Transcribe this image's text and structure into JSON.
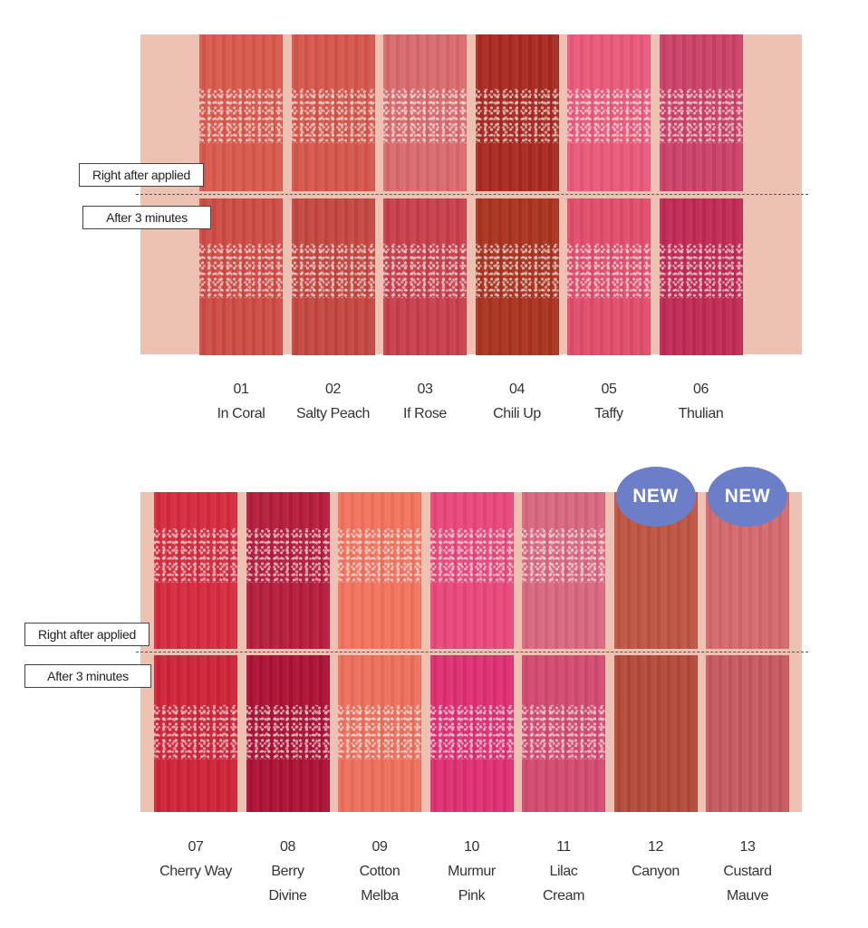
{
  "labels": {
    "right_after": "Right after applied",
    "after_3min": "After 3 minutes",
    "new_badge": "NEW"
  },
  "colors": {
    "panel_background": "#eec2b3",
    "badge": "#6d7ec9"
  },
  "top_panel": {
    "shades": [
      {
        "number": "01",
        "name": "In Coral",
        "name2": "",
        "before": "#d9594c",
        "after": "#cf4b44"
      },
      {
        "number": "02",
        "name": "Salty Peach",
        "name2": "",
        "before": "#d5564a",
        "after": "#c44740"
      },
      {
        "number": "03",
        "name": "If Rose",
        "name2": "",
        "before": "#d96a6c",
        "after": "#c73f4c"
      },
      {
        "number": "04",
        "name": "Chili Up",
        "name2": "",
        "before": "#a82a20",
        "after": "#a9331f"
      },
      {
        "number": "05",
        "name": "Taffy",
        "name2": "",
        "before": "#ea5a7a",
        "after": "#e04d6c"
      },
      {
        "number": "06",
        "name": "Thulian",
        "name2": "",
        "before": "#cc4168",
        "after": "#c02a54"
      }
    ]
  },
  "bottom_panel": {
    "shades": [
      {
        "number": "07",
        "name": "Cherry Way",
        "name2": "",
        "before": "#d62a3e",
        "after": "#cf2338",
        "is_new": false
      },
      {
        "number": "08",
        "name": "Berry",
        "name2": "Divine",
        "before": "#b51c3d",
        "after": "#ab1235",
        "is_new": false
      },
      {
        "number": "09",
        "name": "Cotton",
        "name2": "Melba",
        "before": "#f4735e",
        "after": "#ec6f5c",
        "is_new": false
      },
      {
        "number": "10",
        "name": "Murmur",
        "name2": "Pink",
        "before": "#e9487a",
        "after": "#df2f72",
        "is_new": false
      },
      {
        "number": "11",
        "name": "Lilac",
        "name2": "Cream",
        "before": "#d96780",
        "after": "#d44a71",
        "is_new": false
      },
      {
        "number": "12",
        "name": "Canyon",
        "name2": "",
        "before": "#be5442",
        "after": "#b34a39",
        "is_new": true
      },
      {
        "number": "13",
        "name": "Custard",
        "name2": "Mauve",
        "before": "#d3696d",
        "after": "#c75860",
        "is_new": true
      }
    ]
  }
}
